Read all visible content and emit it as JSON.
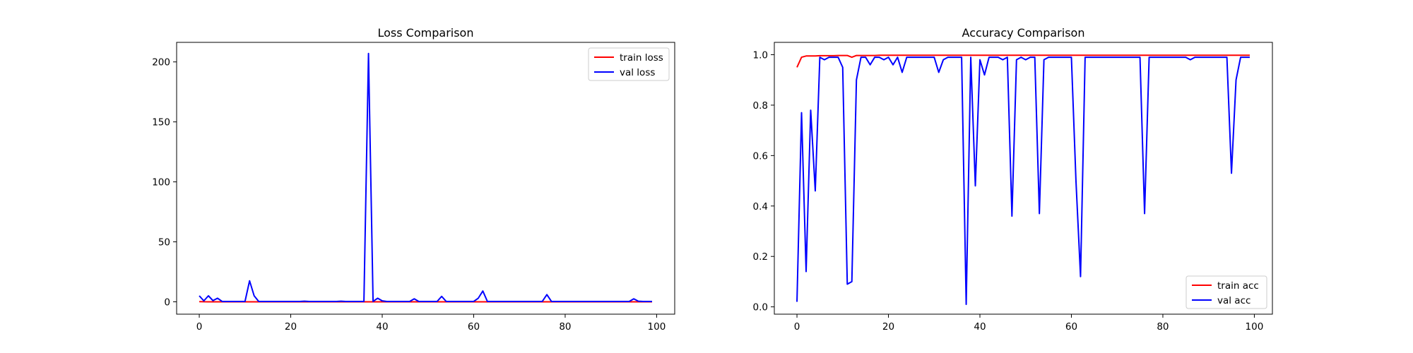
{
  "chart_data": [
    {
      "type": "line",
      "title": "Loss Comparison",
      "xlabel": "",
      "ylabel": "",
      "xlim": [
        -4.95,
        103.95
      ],
      "ylim": [
        -10.3,
        216.3
      ],
      "xticks": [
        0,
        20,
        40,
        60,
        80,
        100
      ],
      "yticks": [
        0,
        50,
        100,
        150,
        200
      ],
      "grid": false,
      "legend": "top-right",
      "series": [
        {
          "name": "train loss",
          "color": "#ff0000",
          "x": [
            0,
            1,
            2,
            3,
            4,
            5,
            6,
            7,
            8,
            9,
            10,
            11,
            12,
            13,
            14,
            15,
            16,
            17,
            18,
            19,
            20,
            21,
            22,
            23,
            24,
            25,
            26,
            27,
            28,
            29,
            30,
            31,
            32,
            33,
            34,
            35,
            36,
            37,
            38,
            39,
            40,
            41,
            42,
            43,
            44,
            45,
            46,
            47,
            48,
            49,
            50,
            51,
            52,
            53,
            54,
            55,
            56,
            57,
            58,
            59,
            60,
            61,
            62,
            63,
            64,
            65,
            66,
            67,
            68,
            69,
            70,
            71,
            72,
            73,
            74,
            75,
            76,
            77,
            78,
            79,
            80,
            81,
            82,
            83,
            84,
            85,
            86,
            87,
            88,
            89,
            90,
            91,
            92,
            93,
            94,
            95,
            96,
            97,
            98,
            99
          ],
          "y": [
            0.15,
            0.04,
            0.03,
            0.03,
            0.03,
            0.02,
            0.02,
            0.02,
            0.02,
            0.02,
            0.02,
            0.02,
            0.02,
            0.02,
            0.02,
            0.02,
            0.02,
            0.02,
            0.02,
            0.02,
            0.02,
            0.02,
            0.02,
            0.02,
            0.02,
            0.02,
            0.02,
            0.02,
            0.02,
            0.02,
            0.02,
            0.02,
            0.02,
            0.02,
            0.02,
            0.02,
            0.02,
            0.02,
            0.02,
            0.02,
            0.02,
            0.02,
            0.02,
            0.02,
            0.02,
            0.02,
            0.02,
            0.02,
            0.02,
            0.02,
            0.02,
            0.02,
            0.02,
            0.02,
            0.02,
            0.02,
            0.02,
            0.02,
            0.02,
            0.02,
            0.02,
            0.02,
            0.02,
            0.02,
            0.02,
            0.02,
            0.02,
            0.02,
            0.02,
            0.02,
            0.02,
            0.02,
            0.02,
            0.02,
            0.02,
            0.02,
            0.02,
            0.02,
            0.02,
            0.02,
            0.02,
            0.02,
            0.02,
            0.02,
            0.02,
            0.02,
            0.02,
            0.02,
            0.02,
            0.02,
            0.02,
            0.02,
            0.02,
            0.02,
            0.02,
            0.02,
            0.02,
            0.02,
            0.02,
            0.02
          ]
        },
        {
          "name": "val loss",
          "color": "#0000ff",
          "x": [
            0,
            1,
            2,
            3,
            4,
            5,
            6,
            7,
            8,
            9,
            10,
            11,
            12,
            13,
            14,
            15,
            16,
            17,
            18,
            19,
            20,
            21,
            22,
            23,
            24,
            25,
            26,
            27,
            28,
            29,
            30,
            31,
            32,
            33,
            34,
            35,
            36,
            37,
            38,
            39,
            40,
            41,
            42,
            43,
            44,
            45,
            46,
            47,
            48,
            49,
            50,
            51,
            52,
            53,
            54,
            55,
            56,
            57,
            58,
            59,
            60,
            61,
            62,
            63,
            64,
            65,
            66,
            67,
            68,
            69,
            70,
            71,
            72,
            73,
            74,
            75,
            76,
            77,
            78,
            79,
            80,
            81,
            82,
            83,
            84,
            85,
            86,
            87,
            88,
            89,
            90,
            91,
            92,
            93,
            94,
            95,
            96,
            97,
            98,
            99
          ],
          "y": [
            5,
            0.8,
            5,
            1,
            3,
            0.3,
            0.3,
            0.3,
            0.3,
            0.3,
            0.3,
            17.5,
            5,
            0.3,
            0.3,
            0.3,
            0.3,
            0.3,
            0.3,
            0.3,
            0.3,
            0.3,
            0.3,
            0.5,
            0.3,
            0.3,
            0.3,
            0.3,
            0.3,
            0.3,
            0.3,
            0.5,
            0.3,
            0.3,
            0.3,
            0.3,
            0.3,
            207,
            0.3,
            3,
            0.8,
            0.3,
            0.3,
            0.3,
            0.3,
            0.3,
            0.3,
            2.5,
            0.3,
            0.3,
            0.3,
            0.3,
            0.3,
            4.5,
            0.3,
            0.3,
            0.3,
            0.3,
            0.3,
            0.3,
            0.3,
            3,
            9,
            0.3,
            0.3,
            0.3,
            0.3,
            0.3,
            0.3,
            0.3,
            0.3,
            0.3,
            0.3,
            0.3,
            0.3,
            0.3,
            6,
            0.3,
            0.3,
            0.3,
            0.3,
            0.3,
            0.3,
            0.3,
            0.3,
            0.3,
            0.3,
            0.3,
            0.3,
            0.3,
            0.3,
            0.3,
            0.3,
            0.3,
            0.3,
            2.5,
            0.5,
            0.3,
            0.3,
            0.3
          ]
        }
      ]
    },
    {
      "type": "line",
      "title": "Accuracy Comparison",
      "xlabel": "",
      "ylabel": "",
      "xlim": [
        -4.95,
        103.95
      ],
      "ylim": [
        -0.029,
        1.049
      ],
      "xticks": [
        0,
        20,
        40,
        60,
        80,
        100
      ],
      "yticks": [
        0.0,
        0.2,
        0.4,
        0.6,
        0.8,
        1.0
      ],
      "grid": false,
      "legend": "bottom-right",
      "series": [
        {
          "name": "train acc",
          "color": "#ff0000",
          "x": [
            0,
            1,
            2,
            3,
            4,
            5,
            6,
            7,
            8,
            9,
            10,
            11,
            12,
            13,
            14,
            15,
            16,
            17,
            18,
            19,
            20,
            21,
            22,
            23,
            24,
            25,
            26,
            27,
            28,
            29,
            30,
            31,
            32,
            33,
            34,
            35,
            36,
            37,
            38,
            39,
            40,
            41,
            42,
            43,
            44,
            45,
            46,
            47,
            48,
            49,
            50,
            51,
            52,
            53,
            54,
            55,
            56,
            57,
            58,
            59,
            60,
            61,
            62,
            63,
            64,
            65,
            66,
            67,
            68,
            69,
            70,
            71,
            72,
            73,
            74,
            75,
            76,
            77,
            78,
            79,
            80,
            81,
            82,
            83,
            84,
            85,
            86,
            87,
            88,
            89,
            90,
            91,
            92,
            93,
            94,
            95,
            96,
            97,
            98,
            99
          ],
          "y": [
            0.95,
            0.99,
            0.995,
            0.995,
            0.995,
            0.996,
            0.996,
            0.996,
            0.996,
            0.997,
            0.997,
            0.997,
            0.99,
            0.997,
            0.997,
            0.997,
            0.997,
            0.997,
            0.998,
            0.998,
            0.998,
            0.998,
            0.998,
            0.998,
            0.998,
            0.998,
            0.998,
            0.998,
            0.998,
            0.998,
            0.998,
            0.998,
            0.998,
            0.998,
            0.998,
            0.998,
            0.998,
            0.998,
            0.998,
            0.998,
            0.998,
            0.998,
            0.998,
            0.998,
            0.998,
            0.998,
            0.998,
            0.998,
            0.998,
            0.998,
            0.998,
            0.998,
            0.998,
            0.998,
            0.998,
            0.998,
            0.998,
            0.998,
            0.998,
            0.998,
            0.998,
            0.998,
            0.998,
            0.998,
            0.998,
            0.998,
            0.998,
            0.998,
            0.998,
            0.998,
            0.998,
            0.998,
            0.998,
            0.998,
            0.998,
            0.998,
            0.998,
            0.998,
            0.998,
            0.998,
            0.998,
            0.998,
            0.998,
            0.998,
            0.998,
            0.998,
            0.998,
            0.998,
            0.998,
            0.998,
            0.998,
            0.998,
            0.998,
            0.998,
            0.998,
            0.998,
            0.998,
            0.998,
            0.998,
            0.998
          ]
        },
        {
          "name": "val acc",
          "color": "#0000ff",
          "x": [
            0,
            1,
            2,
            3,
            4,
            5,
            6,
            7,
            8,
            9,
            10,
            11,
            12,
            13,
            14,
            15,
            16,
            17,
            18,
            19,
            20,
            21,
            22,
            23,
            24,
            25,
            26,
            27,
            28,
            29,
            30,
            31,
            32,
            33,
            34,
            35,
            36,
            37,
            38,
            39,
            40,
            41,
            42,
            43,
            44,
            45,
            46,
            47,
            48,
            49,
            50,
            51,
            52,
            53,
            54,
            55,
            56,
            57,
            58,
            59,
            60,
            61,
            62,
            63,
            64,
            65,
            66,
            67,
            68,
            69,
            70,
            71,
            72,
            73,
            74,
            75,
            76,
            77,
            78,
            79,
            80,
            81,
            82,
            83,
            84,
            85,
            86,
            87,
            88,
            89,
            90,
            91,
            92,
            93,
            94,
            95,
            96,
            97,
            98,
            99
          ],
          "y": [
            0.02,
            0.77,
            0.14,
            0.78,
            0.46,
            0.99,
            0.98,
            0.99,
            0.99,
            0.99,
            0.95,
            0.09,
            0.1,
            0.9,
            0.99,
            0.99,
            0.96,
            0.99,
            0.99,
            0.98,
            0.99,
            0.96,
            0.99,
            0.93,
            0.99,
            0.99,
            0.99,
            0.99,
            0.99,
            0.99,
            0.99,
            0.93,
            0.98,
            0.99,
            0.99,
            0.99,
            0.99,
            0.01,
            0.99,
            0.48,
            0.98,
            0.92,
            0.99,
            0.99,
            0.99,
            0.98,
            0.99,
            0.36,
            0.98,
            0.99,
            0.98,
            0.99,
            0.99,
            0.37,
            0.98,
            0.99,
            0.99,
            0.99,
            0.99,
            0.99,
            0.99,
            0.5,
            0.12,
            0.99,
            0.99,
            0.99,
            0.99,
            0.99,
            0.99,
            0.99,
            0.99,
            0.99,
            0.99,
            0.99,
            0.99,
            0.99,
            0.37,
            0.99,
            0.99,
            0.99,
            0.99,
            0.99,
            0.99,
            0.99,
            0.99,
            0.99,
            0.98,
            0.99,
            0.99,
            0.99,
            0.99,
            0.99,
            0.99,
            0.99,
            0.99,
            0.53,
            0.9,
            0.99,
            0.99,
            0.99
          ]
        }
      ]
    }
  ]
}
